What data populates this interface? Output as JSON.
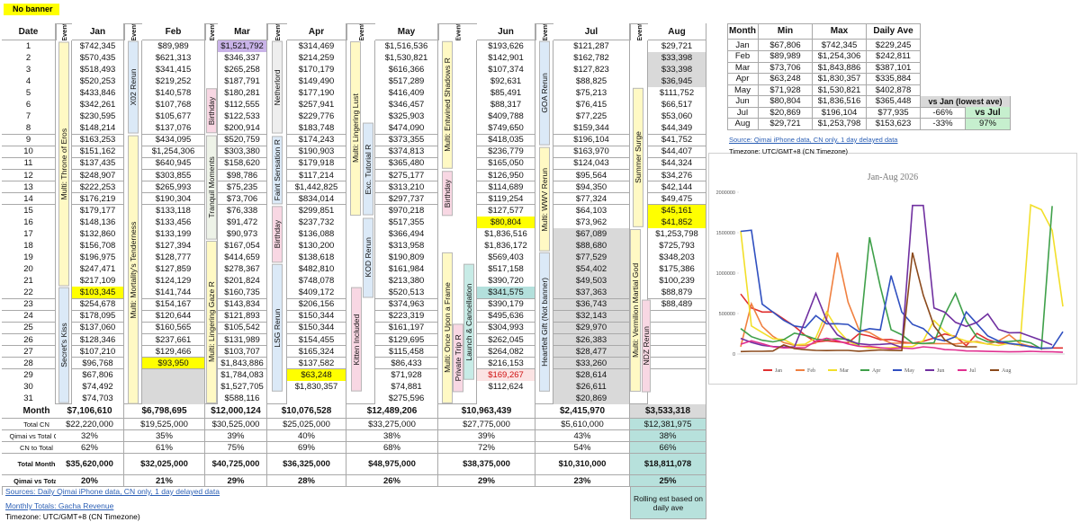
{
  "no_banner": "No banner",
  "table": {
    "header": [
      "Date",
      "Event",
      "Jan",
      "Event",
      "Feb",
      "Event",
      "Mar",
      "Event",
      "Apr",
      "Event",
      "May",
      "Event",
      "Jun",
      "Event",
      "Jul",
      "Event",
      "Aug"
    ],
    "rows": [
      [
        "1",
        "$742,345",
        "$89,989",
        "$1,521,792",
        "$314,469",
        "$1,516,536",
        "$193,626",
        "$121,287",
        "$29,721"
      ],
      [
        "2",
        "$570,435",
        "$621,313",
        "$346,337",
        "$214,259",
        "$1,530,821",
        "$142,901",
        "$162,782",
        "$33,398"
      ],
      [
        "3",
        "$518,493",
        "$341,415",
        "$265,258",
        "$170,179",
        "$616,366",
        "$107,374",
        "$127,823",
        "$33,398"
      ],
      [
        "4",
        "$520,253",
        "$219,252",
        "$187,791",
        "$149,490",
        "$517,289",
        "$92,631",
        "$88,825",
        "$36,945"
      ],
      [
        "5",
        "$433,846",
        "$140,578",
        "$180,281",
        "$177,190",
        "$416,409",
        "$85,491",
        "$75,213",
        "$111,752"
      ],
      [
        "6",
        "$342,261",
        "$107,768",
        "$112,555",
        "$257,941",
        "$346,457",
        "$88,317",
        "$76,415",
        "$66,517"
      ],
      [
        "7",
        "$230,595",
        "$105,677",
        "$122,533",
        "$229,776",
        "$325,903",
        "$409,788",
        "$77,225",
        "$53,060"
      ],
      [
        "8",
        "$148,214",
        "$137,076",
        "$200,914",
        "$183,748",
        "$474,090",
        "$749,650",
        "$159,344",
        "$44,349"
      ],
      [
        "9",
        "$163,253",
        "$434,095",
        "$520,759",
        "$174,243",
        "$373,355",
        "$418,035",
        "$196,104",
        "$41,752"
      ],
      [
        "10",
        "$151,162",
        "$1,254,306",
        "$303,380",
        "$190,903",
        "$374,813",
        "$236,779",
        "$163,970",
        "$44,407"
      ],
      [
        "11",
        "$137,435",
        "$640,945",
        "$158,620",
        "$179,918",
        "$365,480",
        "$165,050",
        "$124,043",
        "$44,324"
      ],
      [
        "12",
        "$248,907",
        "$303,855",
        "$98,786",
        "$117,214",
        "$275,177",
        "$126,950",
        "$95,564",
        "$34,276"
      ],
      [
        "13",
        "$222,253",
        "$265,993",
        "$75,235",
        "$1,442,825",
        "$313,210",
        "$114,689",
        "$94,350",
        "$42,144"
      ],
      [
        "14",
        "$176,219",
        "$190,304",
        "$73,706",
        "$834,014",
        "$297,737",
        "$119,254",
        "$77,324",
        "$49,475"
      ],
      [
        "15",
        "$179,177",
        "$133,118",
        "$76,338",
        "$299,851",
        "$970,218",
        "$127,577",
        "$64,103",
        "$45,161"
      ],
      [
        "16",
        "$148,136",
        "$133,456",
        "$91,472",
        "$237,732",
        "$517,355",
        "$80,804",
        "$73,962",
        "$41,852"
      ],
      [
        "17",
        "$132,860",
        "$133,199",
        "$90,973",
        "$136,088",
        "$366,494",
        "$1,836,516",
        "$67,089",
        "$1,253,798"
      ],
      [
        "18",
        "$156,708",
        "$127,394",
        "$167,054",
        "$130,200",
        "$313,958",
        "$1,836,172",
        "$88,680",
        "$725,793"
      ],
      [
        "19",
        "$196,975",
        "$128,777",
        "$414,659",
        "$138,618",
        "$190,809",
        "$569,403",
        "$77,529",
        "$348,203"
      ],
      [
        "20",
        "$247,471",
        "$127,859",
        "$278,367",
        "$482,810",
        "$161,984",
        "$517,158",
        "$54,402",
        "$175,386"
      ],
      [
        "21",
        "$217,109",
        "$124,129",
        "$201,824",
        "$748,078",
        "$213,380",
        "$390,720",
        "$49,503",
        "$100,239"
      ],
      [
        "22",
        "$103,345",
        "$141,744",
        "$160,735",
        "$409,172",
        "$520,513",
        "$341,575",
        "$37,363",
        "$88,879"
      ],
      [
        "23",
        "$254,678",
        "$154,167",
        "$143,834",
        "$206,156",
        "$374,963",
        "$390,179",
        "$36,743",
        "$88,489"
      ],
      [
        "24",
        "$178,095",
        "$120,644",
        "$121,893",
        "$150,344",
        "$223,319",
        "$495,636",
        "$32,143",
        null
      ],
      [
        "25",
        "$137,060",
        "$160,565",
        "$105,542",
        "$150,344",
        "$161,197",
        "$304,993",
        "$29,970",
        null
      ],
      [
        "26",
        "$128,346",
        "$237,661",
        "$131,989",
        "$154,455",
        "$129,695",
        "$262,045",
        "$26,383",
        null
      ],
      [
        "27",
        "$107,210",
        "$129,466",
        "$103,707",
        "$165,324",
        "$115,458",
        "$264,082",
        "$28,477",
        null
      ],
      [
        "28",
        "$96,768",
        "$93,950",
        "$1,843,886",
        "$137,582",
        "$86,433",
        "$216,153",
        "$33,260",
        null
      ],
      [
        "29",
        "$67,806",
        null,
        "$1,784,083",
        "$63,248",
        "$71,928",
        "$169,267",
        "$28,614",
        null
      ],
      [
        "30",
        "$74,492",
        null,
        "$1,527,705",
        "$1,830,357",
        "$74,881",
        "$112,624",
        "$26,611",
        null
      ],
      [
        "31",
        "$74,703",
        null,
        "$588,116",
        null,
        "$275,596",
        null,
        "$20,869",
        null
      ]
    ],
    "summary": [
      {
        "label": "Month",
        "values": [
          "$7,106,610",
          "$6,798,695",
          "$12,000,124",
          "$10,076,528",
          "$12,489,206",
          "$10,963,439",
          "$2,415,970",
          "$3,533,318"
        ]
      },
      {
        "label": "Total CN",
        "values": [
          "$22,220,000",
          "$19,525,000",
          "$30,525,000",
          "$25,025,000",
          "$33,275,000",
          "$27,775,000",
          "$5,610,000",
          "$12,381,975"
        ]
      },
      {
        "label": "Qimai vs Total CN",
        "values": [
          "32%",
          "35%",
          "39%",
          "40%",
          "38%",
          "39%",
          "43%",
          "38%"
        ]
      },
      {
        "label": "CN  to Total",
        "values": [
          "62%",
          "61%",
          "75%",
          "69%",
          "68%",
          "72%",
          "54%",
          "66%"
        ]
      },
      {
        "label": "Total Month",
        "values": [
          "$35,620,000",
          "$32,025,000",
          "$40,725,000",
          "$36,325,000",
          "$48,975,000",
          "$38,375,000",
          "$10,310,000",
          "$18,811,078"
        ]
      },
      {
        "label": "Qimai vs Total",
        "values": [
          "20%",
          "21%",
          "29%",
          "28%",
          "26%",
          "29%",
          "23%",
          "25%"
        ]
      }
    ],
    "note": "Rolling est based on daily ave"
  },
  "events": [
    "Multi: Throne of Eros",
    "Secret's Kiss",
    "X02 Rerun",
    "Multi: Mortality's Tenderness",
    "Birthday",
    "Tranquil Moments",
    "Multi: Lingering Gaze R",
    "Netherlord",
    "Faint Sensation R",
    "Birthday",
    "LSG Rerun",
    "Multi: Lingering Lust",
    "Exc. Tutorial R",
    "KOD Rerun",
    "Kitten Included",
    "Multi: Entwined Shadows R",
    "Birthday",
    "Multi: Once Upon a Frame",
    "Private Trip R",
    "Launch & Cancellation",
    "GOA Rerun",
    "Multi: WWV Rerun",
    "Heartfelt Gift (Not banner)",
    "Summer Surge",
    "Multi: Vermilion Martial God",
    "NDZ Rerun"
  ],
  "footer": [
    "Sources: Daily Qimai iPhone data, CN only, 1 day delayed data",
    "Monthly Totals: Gacha Revenue",
    "Timezone: UTC/GMT+8 (CN Timezone)"
  ],
  "side_table": {
    "header": [
      "Month",
      "Min",
      "Max",
      "Daily Ave"
    ],
    "rows": [
      [
        "Jan",
        "$67,806",
        "$742,345",
        "$229,245"
      ],
      [
        "Feb",
        "$89,989",
        "$1,254,306",
        "$242,811"
      ],
      [
        "Mar",
        "$73,706",
        "$1,843,886",
        "$387,101"
      ],
      [
        "Apr",
        "$63,248",
        "$1,830,357",
        "$335,884"
      ],
      [
        "May",
        "$71,928",
        "$1,530,821",
        "$402,878"
      ],
      [
        "Jun",
        "$80,804",
        "$1,836,516",
        "$365,448"
      ],
      [
        "Jul",
        "$20,869",
        "$196,104",
        "$77,935"
      ],
      [
        "Aug",
        "$29,721",
        "$1,253,798",
        "$153,623"
      ]
    ],
    "compare_label": "vs Jan (lowest ave)",
    "compare_label_2": "vs Jul",
    "jul_vs_jan": "-66%",
    "aug_vs_jan": "-33%",
    "aug_vs_jul": "97%",
    "source": "Source: Qimai iPhone data, CN only, 1 day delayed data",
    "timezone": "Timezone: UTC/GMT+8 (CN Timezone)"
  },
  "chart_data": {
    "type": "line",
    "title": "Jan-Aug 2026",
    "ylim": [
      0,
      2000000
    ],
    "yticks": [
      0,
      500000,
      1000000,
      1500000,
      2000000
    ],
    "grid": false,
    "legend": "bottom",
    "series": [
      {
        "name": "Jan",
        "color": "#e03030",
        "values": [
          742345,
          570435,
          518493,
          520253,
          433846,
          342261,
          230595,
          148214,
          163253,
          151162,
          137435,
          248907,
          222253,
          176219,
          179177,
          148136,
          132860,
          156708,
          196975,
          247471,
          217109,
          103345,
          254678,
          178095,
          137060,
          128346,
          107210,
          96768,
          67806,
          74492,
          74703
        ]
      },
      {
        "name": "Feb",
        "color": "#f08040",
        "values": [
          89989,
          621313,
          341415,
          219252,
          140578,
          107768,
          105677,
          137076,
          434095,
          1254306,
          640945,
          303855,
          265993,
          190304,
          133118,
          133456,
          133199,
          127394,
          128777,
          127859,
          124129,
          141744,
          154167,
          120644,
          160565,
          237661,
          129466,
          93950,
          null,
          null,
          null
        ]
      },
      {
        "name": "Mar",
        "color": "#f2df2a",
        "values": [
          1521792,
          346337,
          265258,
          187791,
          180281,
          112555,
          122533,
          200914,
          520759,
          303380,
          158620,
          98786,
          75235,
          73706,
          76338,
          91472,
          90973,
          167054,
          414659,
          278367,
          201824,
          160735,
          143834,
          121893,
          105542,
          131989,
          103707,
          1843886,
          1784083,
          1527705,
          588116
        ]
      },
      {
        "name": "Apr",
        "color": "#3fa04a",
        "values": [
          314469,
          214259,
          170179,
          149490,
          177190,
          257941,
          229776,
          183748,
          174243,
          190903,
          179918,
          117214,
          1442825,
          834014,
          299851,
          237732,
          136088,
          130200,
          138618,
          482810,
          748078,
          409172,
          206156,
          150344,
          150344,
          154455,
          165324,
          137582,
          63248,
          1830357,
          null
        ]
      },
      {
        "name": "May",
        "color": "#3050c0",
        "values": [
          1516536,
          1530821,
          616366,
          517289,
          416409,
          346457,
          325903,
          474090,
          373355,
          374813,
          365480,
          275177,
          313210,
          297737,
          970218,
          517355,
          366494,
          313958,
          190809,
          161984,
          213380,
          520513,
          374963,
          223319,
          161197,
          129695,
          115458,
          86433,
          71928,
          74881,
          275596
        ]
      },
      {
        "name": "Jun",
        "color": "#7030a0",
        "values": [
          193626,
          142901,
          107374,
          92631,
          85491,
          88317,
          409788,
          749650,
          418035,
          236779,
          165050,
          126950,
          114689,
          119254,
          127577,
          80804,
          1836516,
          1836172,
          569403,
          517158,
          390720,
          341575,
          390179,
          495636,
          304993,
          262045,
          264082,
          216153,
          169267,
          112624,
          null
        ]
      },
      {
        "name": "Jul",
        "color": "#e03090",
        "values": [
          121287,
          162782,
          127823,
          88825,
          75213,
          76415,
          77225,
          159344,
          196104,
          163970,
          124043,
          95564,
          94350,
          77324,
          64103,
          73962,
          67089,
          88680,
          77529,
          54402,
          49503,
          37363,
          36743,
          32143,
          29970,
          26383,
          28477,
          33260,
          28614,
          26611,
          20869
        ]
      },
      {
        "name": "Aug",
        "color": "#8b4a1c",
        "values": [
          29721,
          33398,
          33398,
          36945,
          111752,
          66517,
          53060,
          44349,
          41752,
          44407,
          44324,
          34276,
          42144,
          49475,
          45161,
          41852,
          1253798,
          725793,
          348203,
          175386,
          100239,
          88879,
          88489,
          null,
          null,
          null,
          null,
          null,
          null,
          null,
          null
        ]
      }
    ]
  }
}
